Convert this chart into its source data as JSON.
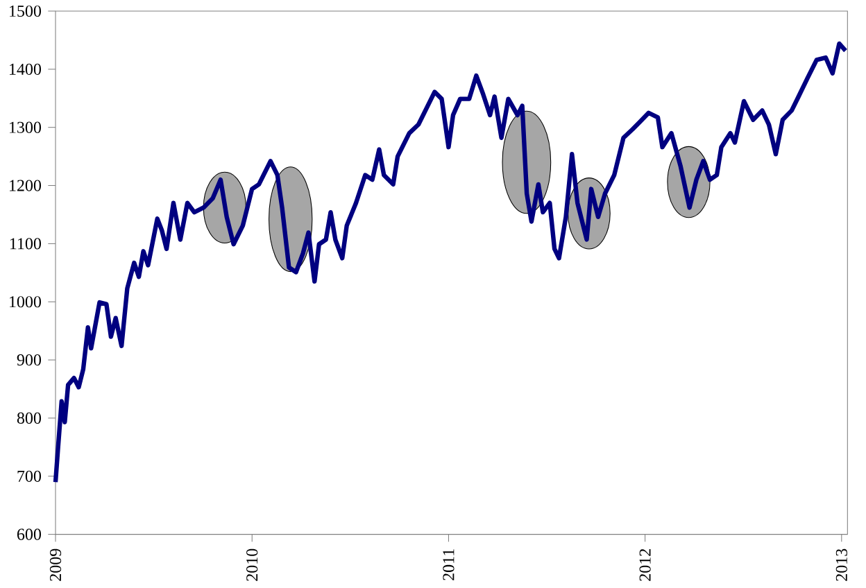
{
  "chart_data": {
    "type": "line",
    "x": [
      2009.0,
      2009.012,
      2009.031,
      2009.047,
      2009.064,
      2009.094,
      2009.118,
      2009.141,
      2009.165,
      2009.181,
      2009.224,
      2009.259,
      2009.282,
      2009.306,
      2009.336,
      2009.365,
      2009.4,
      2009.424,
      2009.447,
      2009.471,
      2009.518,
      2009.541,
      2009.565,
      2009.6,
      2009.635,
      2009.671,
      2009.706,
      2009.753,
      2009.8,
      2009.84,
      2009.871,
      2009.906,
      2009.953,
      2010.0,
      2010.035,
      2010.094,
      2010.129,
      2010.153,
      2010.188,
      2010.224,
      2010.259,
      2010.287,
      2010.318,
      2010.341,
      2010.376,
      2010.4,
      2010.424,
      2010.459,
      2010.482,
      2010.529,
      2010.576,
      2010.612,
      2010.647,
      2010.671,
      2010.718,
      2010.741,
      2010.8,
      2010.847,
      2010.894,
      2010.929,
      2010.965,
      2011.0,
      2011.023,
      2011.059,
      2011.105,
      2011.141,
      2011.176,
      2011.211,
      2011.234,
      2011.269,
      2011.304,
      2011.351,
      2011.375,
      2011.398,
      2011.422,
      2011.457,
      2011.48,
      2011.515,
      2011.539,
      2011.562,
      2011.597,
      2011.628,
      2011.656,
      2011.703,
      2011.726,
      2011.761,
      2011.796,
      2011.843,
      2011.89,
      2011.937,
      2011.972,
      2012.018,
      2012.065,
      2012.088,
      2012.134,
      2012.18,
      2012.226,
      2012.261,
      2012.296,
      2012.33,
      2012.365,
      2012.388,
      2012.434,
      2012.457,
      2012.503,
      2012.55,
      2012.596,
      2012.63,
      2012.665,
      2012.7,
      2012.746,
      2012.781,
      2012.827,
      2012.873,
      2012.919,
      2012.954,
      2012.988,
      2013.02
    ],
    "series": [
      {
        "color": "#000080",
        "values": [
          690,
          745,
          829,
          793,
          857,
          869,
          853,
          884,
          956,
          920,
          999,
          996,
          940,
          972,
          924,
          1023,
          1067,
          1043,
          1087,
          1063,
          1143,
          1123,
          1091,
          1170,
          1107,
          1170,
          1154,
          1162,
          1178,
          1210,
          1146,
          1099,
          1131,
          1194,
          1202,
          1242,
          1218,
          1162,
          1059,
          1051,
          1083,
          1119,
          1035,
          1099,
          1107,
          1154,
          1107,
          1075,
          1131,
          1170,
          1218,
          1210,
          1262,
          1218,
          1202,
          1250,
          1290,
          1305,
          1337,
          1361,
          1349,
          1266,
          1321,
          1349,
          1349,
          1389,
          1357,
          1321,
          1353,
          1282,
          1349,
          1321,
          1337,
          1186,
          1138,
          1202,
          1154,
          1170,
          1091,
          1075,
          1146,
          1254,
          1170,
          1107,
          1194,
          1146,
          1186,
          1218,
          1282,
          1297,
          1309,
          1325,
          1317,
          1266,
          1290,
          1234,
          1162,
          1210,
          1242,
          1210,
          1218,
          1266,
          1290,
          1274,
          1345,
          1313,
          1329,
          1305,
          1254,
          1313,
          1329,
          1353,
          1385,
          1416,
          1420,
          1393,
          1444,
          1432
        ]
      }
    ],
    "xlim": [
      2009,
      2013.03
    ],
    "xticks": [
      2009,
      2010,
      2011,
      2012,
      2013
    ],
    "ylim": [
      600,
      1500
    ],
    "yticks": [
      600,
      700,
      800,
      900,
      1000,
      1100,
      1200,
      1300,
      1400,
      1500
    ],
    "grid": false,
    "marker": "none",
    "line_style": "solid"
  }
}
